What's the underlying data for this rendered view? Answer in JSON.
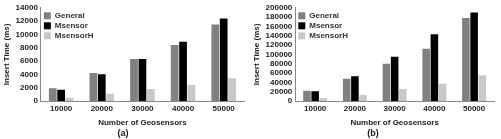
{
  "chart_data": [
    {
      "type": "bar",
      "subtitle": "(a)",
      "x_label": "Number of Geosensors",
      "y_label": "Insert Time (ms)",
      "categories": [
        "10000",
        "20000",
        "30000",
        "40000",
        "50000"
      ],
      "series": [
        {
          "name": "General",
          "color": "#808080",
          "values": [
            1900,
            4200,
            6300,
            8400,
            11500
          ]
        },
        {
          "name": "Msensor",
          "color": "#000000",
          "values": [
            1700,
            4000,
            6300,
            8900,
            12400
          ]
        },
        {
          "name": "MsensorH",
          "color": "#c8c8c8",
          "values": [
            500,
            1100,
            1800,
            2400,
            3400
          ]
        }
      ],
      "ylim": [
        0,
        14000
      ],
      "yticks": [
        0,
        2000,
        4000,
        6000,
        8000,
        10000,
        12000,
        14000
      ],
      "grid": false,
      "legend": "top-left"
    },
    {
      "type": "bar",
      "subtitle": "(b)",
      "x_label": "Number of Geosensors",
      "y_label": "Insert Time (ms)",
      "categories": [
        "10000",
        "20000",
        "30000",
        "40000",
        "50000"
      ],
      "series": [
        {
          "name": "General",
          "color": "#808080",
          "values": [
            22000,
            48000,
            80000,
            112000,
            178000
          ]
        },
        {
          "name": "Msensor",
          "color": "#000000",
          "values": [
            21000,
            53000,
            95000,
            143000,
            190000
          ]
        },
        {
          "name": "MsensorH",
          "color": "#c8c8c8",
          "values": [
            6000,
            13000,
            26000,
            37000,
            55000
          ]
        }
      ],
      "ylim": [
        0,
        200000
      ],
      "yticks": [
        0,
        20000,
        40000,
        60000,
        80000,
        100000,
        120000,
        140000,
        160000,
        180000,
        200000
      ],
      "grid": false,
      "legend": "top-left"
    }
  ]
}
